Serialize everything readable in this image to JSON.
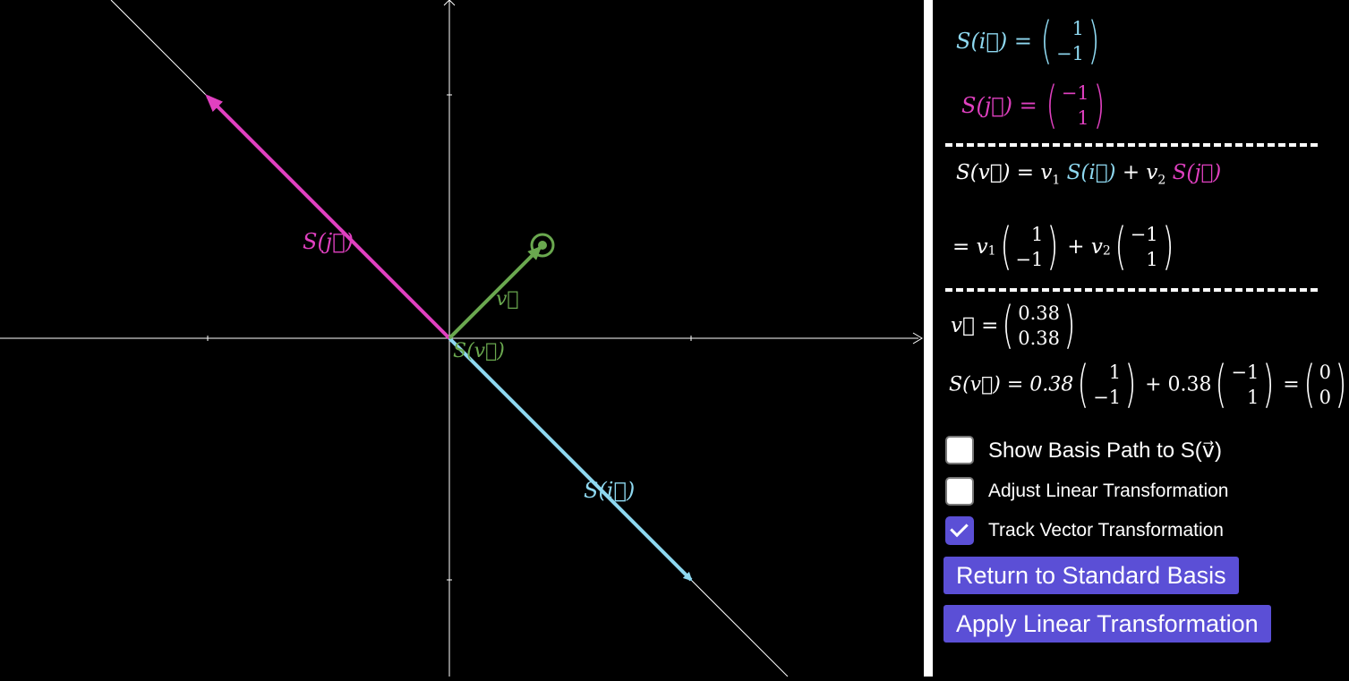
{
  "graph": {
    "label_v": "v⃗",
    "label_Sv": "S(v⃗)",
    "label_Si": "S(i⃗)",
    "label_Sj": "S(j⃗)",
    "colors": {
      "Si": "#8ed8f0",
      "Sj": "#e040c0",
      "v": "#6aa84f",
      "axis": "#ffffff"
    }
  },
  "panel": {
    "Si_def": {
      "lhs": "S(i⃗) =",
      "top": "1",
      "bot": "−1"
    },
    "Sj_def": {
      "lhs": "S(j⃗) =",
      "top": "−1",
      "bot": "1"
    },
    "Sv_general_1": {
      "a": "S(v⃗) = v",
      "a_sub": "1",
      "b": "S(i⃗)",
      "c": "+ v",
      "c_sub": "2",
      "d": "S(j⃗)"
    },
    "Sv_general_2": {
      "a": "= v",
      "a_sub": "1",
      "m1_top": "1",
      "m1_bot": "−1",
      "plus": "+ v",
      "plus_sub": "2",
      "m2_top": "−1",
      "m2_bot": "1"
    },
    "v_value": {
      "lhs": "v⃗ =",
      "top": "0.38",
      "bot": "0.38"
    },
    "Sv_value": {
      "lhs": "S(v⃗) = 0.38",
      "m1_top": "1",
      "m1_bot": "−1",
      "mid": "+ 0.38",
      "m2_top": "−1",
      "m2_bot": "1",
      "eq": "=",
      "r_top": "0",
      "r_bot": "0"
    },
    "checkboxes": [
      {
        "label": "Show Basis Path to S(v⃗)",
        "checked": false
      },
      {
        "label": "Adjust Linear Transformation",
        "checked": false
      },
      {
        "label": "Track Vector Transformation",
        "checked": true
      }
    ],
    "buttons": {
      "return_label": "Return to Standard Basis",
      "apply_label": "Apply Linear Transformation"
    }
  }
}
